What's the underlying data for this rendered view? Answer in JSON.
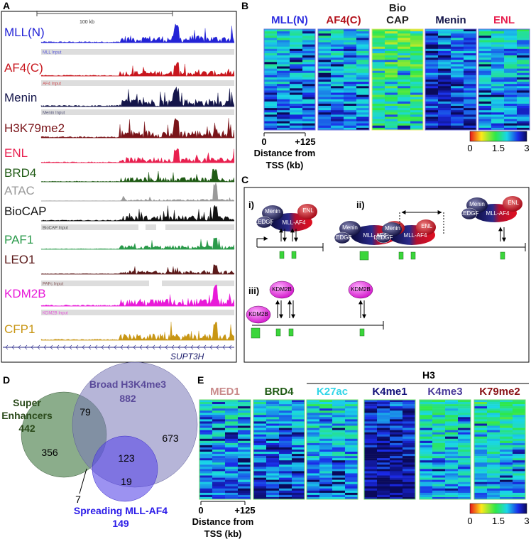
{
  "panel_a": {
    "label": "A",
    "scale_bar": "100 kb",
    "gene": "SUPT3H",
    "tracks": [
      {
        "name": "MLL(N)",
        "color": "#2323d6",
        "input": "MLL Input"
      },
      {
        "name": "AF4(C)",
        "color": "#c8161d",
        "input": "AF4 Input"
      },
      {
        "name": "Menin",
        "color": "#14154a",
        "input": "Menin Input"
      },
      {
        "name": "H3K79me2",
        "color": "#7a1419"
      },
      {
        "name": "ENL",
        "color": "#e8204f"
      },
      {
        "name": "BRD4",
        "color": "#1f5a14"
      },
      {
        "name": "ATAC",
        "color": "#9a9a9a"
      },
      {
        "name": "BioCAP",
        "color": "#111111",
        "input": "BioCAP Input"
      },
      {
        "name": "PAF1",
        "color": "#2a9a4a"
      },
      {
        "name": "LEO1",
        "color": "#5c1a1a",
        "input": "PAFc Input"
      },
      {
        "name": "KDM2B",
        "color": "#e81ad8",
        "input": "KDM2B Input"
      },
      {
        "name": "CFP1",
        "color": "#c89614"
      }
    ]
  },
  "panel_b": {
    "label": "B",
    "heatmaps": [
      {
        "title": [
          "MLL(N)"
        ],
        "color": "#2d2de0"
      },
      {
        "title": [
          "AF4(C)"
        ],
        "color": "#b3121c"
      },
      {
        "title": [
          "Bio",
          "CAP"
        ],
        "color": "#222222"
      },
      {
        "title": [
          "Menin"
        ],
        "color": "#14154a"
      },
      {
        "title": [
          "ENL"
        ],
        "color": "#e8204f"
      }
    ],
    "axis": {
      "start": "0",
      "end": "+125",
      "label": [
        "Distance from",
        "TSS (kb)"
      ]
    },
    "colorbar": [
      "0",
      "1.5",
      "3"
    ]
  },
  "panel_c": {
    "label": "C",
    "sections": [
      "i)",
      "ii)",
      "iii)"
    ],
    "proteins": {
      "menin": "Menin",
      "ledgf": "LEDGF",
      "mll_af4": "MLL-AF4",
      "enl": "ENL",
      "kdm2b": "KDM2B"
    }
  },
  "panel_d": {
    "label": "D",
    "sets": [
      {
        "name": [
          "Super",
          "Enhancers"
        ],
        "total": 442
      },
      {
        "name": [
          "Broad H3K4me3"
        ],
        "total": 882
      },
      {
        "name": [
          "Spreading MLL-AF4"
        ],
        "total": 149
      }
    ],
    "regions": {
      "super_only": 356,
      "super_broad": 79,
      "broad_only": 673,
      "broad_spreading": 123,
      "super_spreading": 7,
      "spreading_only": 19
    }
  },
  "panel_e": {
    "label": "E",
    "group": "H3",
    "heatmaps": [
      {
        "title": "MED1",
        "color": "#c98b8b"
      },
      {
        "title": "BRD4",
        "color": "#1f5a14"
      },
      {
        "title": "K27ac",
        "color": "#33d6e8"
      },
      {
        "title": "K4me1",
        "color": "#14127a"
      },
      {
        "title": "K4me3",
        "color": "#4a3a9a"
      },
      {
        "title": "K79me2",
        "color": "#8a1418"
      }
    ],
    "axis": {
      "start": "0",
      "end": "+125",
      "label": [
        "Distance from",
        "TSS (kb)"
      ]
    },
    "colorbar": [
      "0",
      "1.5",
      "3"
    ]
  }
}
